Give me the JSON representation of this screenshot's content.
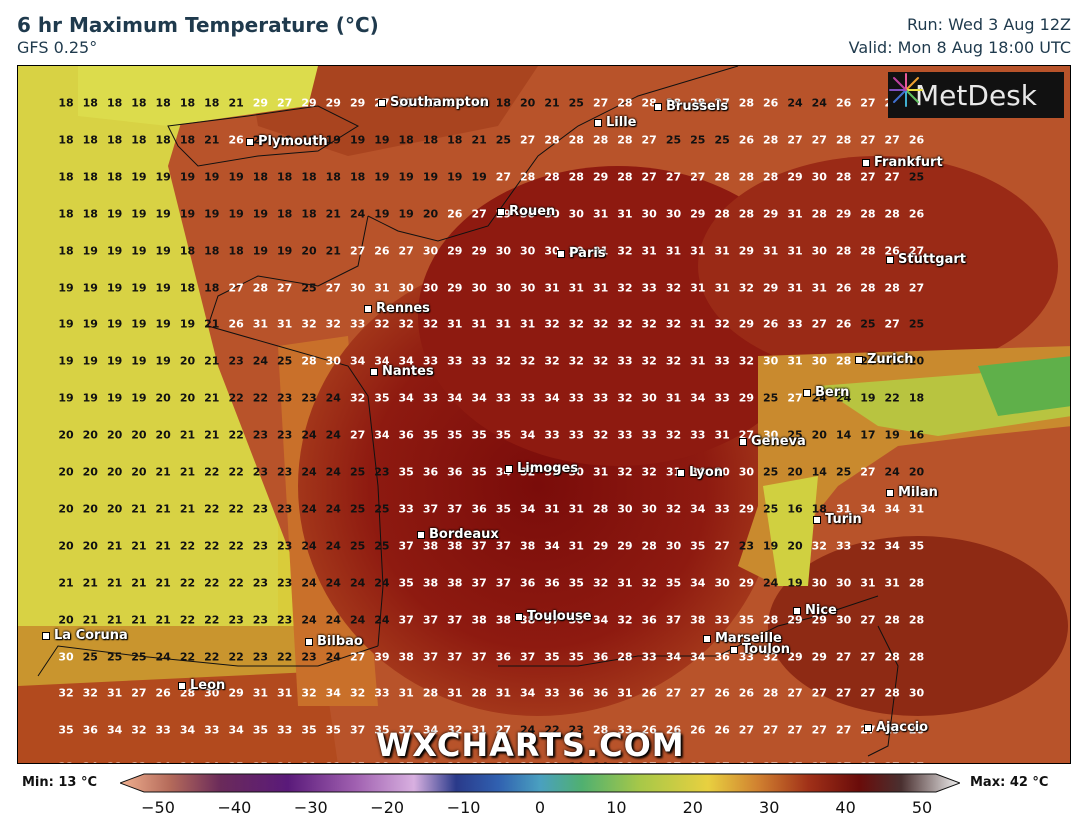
{
  "header": {
    "title": "6 hr Maximum Temperature (°C)",
    "subtitle": "GFS 0.25°",
    "run": "Run: Wed 3 Aug 12Z",
    "valid": "Valid: Mon 8 Aug 18:00 UTC"
  },
  "logo": {
    "text": "MetDesk"
  },
  "watermark": "WXCHARTS.COM",
  "legend": {
    "min_label": "Min: 13 °C",
    "max_label": "Max: 42 °C",
    "ticks": [
      "−50",
      "−40",
      "−30",
      "−20",
      "−10",
      "0",
      "10",
      "20",
      "30",
      "40",
      "50"
    ],
    "range": [
      -50,
      50
    ]
  },
  "cities": [
    {
      "name": "Southampton"
    },
    {
      "name": "Brussels"
    },
    {
      "name": "Lille"
    },
    {
      "name": "Plymouth"
    },
    {
      "name": "Frankfurt"
    },
    {
      "name": "Rouen"
    },
    {
      "name": "Paris"
    },
    {
      "name": "Stuttgart"
    },
    {
      "name": "Rennes"
    },
    {
      "name": "Nantes"
    },
    {
      "name": "Zurich"
    },
    {
      "name": "Bern"
    },
    {
      "name": "Geneva"
    },
    {
      "name": "Limoges"
    },
    {
      "name": "Lyon"
    },
    {
      "name": "Milan"
    },
    {
      "name": "Turin"
    },
    {
      "name": "Bordeaux"
    },
    {
      "name": "Nice"
    },
    {
      "name": "Toulouse"
    },
    {
      "name": "La Coruna"
    },
    {
      "name": "Bilbao"
    },
    {
      "name": "Marseille"
    },
    {
      "name": "Toulon"
    },
    {
      "name": "Leon"
    },
    {
      "name": "Ajaccio"
    }
  ],
  "temperature_grid": [
    [
      18,
      18,
      18,
      18,
      18,
      18,
      18,
      21,
      29,
      27,
      29,
      29,
      29,
      27,
      27,
      27,
      27,
      26,
      18,
      20,
      21,
      25,
      27,
      28,
      28,
      28,
      28,
      27,
      28,
      26,
      24,
      24,
      26,
      27,
      26,
      26
    ],
    [
      18,
      18,
      18,
      18,
      18,
      18,
      21,
      26,
      20,
      19,
      18,
      19,
      19,
      19,
      18,
      18,
      18,
      21,
      25,
      27,
      28,
      28,
      28,
      28,
      27,
      25,
      25,
      25,
      26,
      28,
      27,
      27,
      28,
      27,
      27,
      26
    ],
    [
      18,
      18,
      18,
      19,
      19,
      19,
      19,
      19,
      18,
      18,
      18,
      18,
      18,
      19,
      19,
      19,
      19,
      19,
      27,
      28,
      28,
      28,
      29,
      28,
      27,
      27,
      27,
      28,
      28,
      28,
      29,
      30,
      28,
      27,
      27,
      25
    ],
    [
      18,
      18,
      19,
      19,
      19,
      19,
      19,
      19,
      19,
      18,
      18,
      21,
      24,
      19,
      19,
      20,
      26,
      27,
      29,
      30,
      30,
      30,
      31,
      31,
      30,
      30,
      29,
      28,
      28,
      29,
      31,
      28,
      29,
      28,
      28,
      26
    ],
    [
      18,
      19,
      19,
      19,
      19,
      18,
      18,
      18,
      19,
      19,
      20,
      21,
      27,
      26,
      27,
      30,
      29,
      29,
      30,
      30,
      30,
      30,
      31,
      32,
      31,
      31,
      31,
      31,
      29,
      31,
      31,
      30,
      28,
      28,
      26,
      27
    ],
    [
      19,
      19,
      19,
      19,
      19,
      18,
      18,
      27,
      28,
      27,
      25,
      27,
      30,
      31,
      30,
      30,
      29,
      30,
      30,
      30,
      31,
      31,
      31,
      32,
      33,
      32,
      31,
      31,
      32,
      29,
      31,
      31,
      26,
      28,
      28,
      27
    ],
    [
      19,
      19,
      19,
      19,
      19,
      19,
      21,
      26,
      31,
      31,
      32,
      32,
      33,
      32,
      32,
      32,
      31,
      31,
      31,
      31,
      32,
      32,
      32,
      32,
      32,
      32,
      31,
      32,
      29,
      26,
      33,
      27,
      26,
      25,
      27,
      25
    ],
    [
      19,
      19,
      19,
      19,
      19,
      20,
      21,
      23,
      24,
      25,
      28,
      30,
      34,
      34,
      34,
      33,
      33,
      33,
      32,
      32,
      32,
      32,
      32,
      33,
      32,
      32,
      31,
      33,
      32,
      30,
      31,
      30,
      28,
      24,
      21,
      20
    ],
    [
      19,
      19,
      19,
      19,
      20,
      20,
      21,
      22,
      22,
      23,
      23,
      24,
      32,
      35,
      34,
      33,
      34,
      34,
      33,
      33,
      34,
      33,
      33,
      32,
      30,
      31,
      34,
      33,
      29,
      25,
      27,
      24,
      24,
      19,
      22,
      18
    ],
    [
      20,
      20,
      20,
      20,
      20,
      21,
      21,
      22,
      23,
      23,
      24,
      24,
      27,
      34,
      36,
      35,
      35,
      35,
      35,
      34,
      33,
      33,
      32,
      33,
      33,
      32,
      33,
      31,
      27,
      30,
      25,
      20,
      14,
      17,
      19,
      16
    ],
    [
      20,
      20,
      20,
      20,
      21,
      21,
      22,
      22,
      23,
      23,
      24,
      24,
      25,
      23,
      35,
      36,
      36,
      35,
      34,
      32,
      31,
      30,
      31,
      32,
      32,
      31,
      34,
      30,
      30,
      25,
      20,
      14,
      25,
      27,
      24,
      20
    ],
    [
      20,
      20,
      20,
      21,
      21,
      21,
      22,
      22,
      23,
      23,
      24,
      24,
      25,
      25,
      33,
      37,
      37,
      36,
      35,
      34,
      31,
      31,
      28,
      30,
      30,
      32,
      34,
      33,
      29,
      25,
      16,
      18,
      31,
      34,
      34,
      31
    ],
    [
      20,
      20,
      21,
      21,
      21,
      22,
      22,
      22,
      23,
      23,
      24,
      24,
      25,
      25,
      37,
      38,
      38,
      37,
      37,
      38,
      34,
      31,
      29,
      29,
      28,
      30,
      35,
      27,
      23,
      19,
      20,
      32,
      33,
      32,
      34,
      35
    ],
    [
      21,
      21,
      21,
      21,
      21,
      22,
      22,
      22,
      23,
      23,
      24,
      24,
      24,
      24,
      35,
      38,
      38,
      37,
      37,
      36,
      36,
      35,
      32,
      31,
      32,
      35,
      34,
      30,
      29,
      24,
      19,
      30,
      30,
      31,
      31,
      28
    ],
    [
      20,
      21,
      21,
      21,
      21,
      22,
      22,
      23,
      23,
      23,
      24,
      24,
      24,
      24,
      37,
      37,
      37,
      38,
      38,
      38,
      37,
      36,
      34,
      32,
      36,
      37,
      38,
      33,
      35,
      28,
      29,
      29,
      30,
      27,
      28,
      28
    ],
    [
      30,
      25,
      25,
      25,
      24,
      22,
      22,
      22,
      23,
      22,
      23,
      24,
      27,
      39,
      38,
      37,
      37,
      37,
      36,
      37,
      35,
      35,
      36,
      28,
      33,
      34,
      34,
      36,
      33,
      32,
      29,
      29,
      27,
      27,
      28,
      28
    ],
    [
      32,
      32,
      31,
      27,
      26,
      28,
      30,
      29,
      31,
      31,
      32,
      34,
      32,
      33,
      31,
      28,
      31,
      28,
      31,
      34,
      33,
      36,
      36,
      31,
      26,
      27,
      27,
      26,
      26,
      28,
      27,
      27,
      27,
      27,
      28,
      30
    ],
    [
      35,
      36,
      34,
      32,
      33,
      34,
      33,
      34,
      35,
      33,
      35,
      35,
      37,
      35,
      37,
      34,
      32,
      31,
      27,
      24,
      22,
      23,
      28,
      33,
      26,
      26,
      26,
      26,
      27,
      27,
      27,
      27,
      27,
      27,
      29,
      28
    ],
    [
      33,
      34,
      31,
      32,
      34,
      34,
      34,
      35,
      35,
      34,
      31,
      31,
      35,
      38,
      27,
      30,
      29,
      28,
      30,
      31,
      30,
      24,
      24,
      26,
      27,
      27,
      27,
      27,
      27,
      27,
      27,
      27,
      27,
      27,
      27,
      27
    ]
  ]
}
